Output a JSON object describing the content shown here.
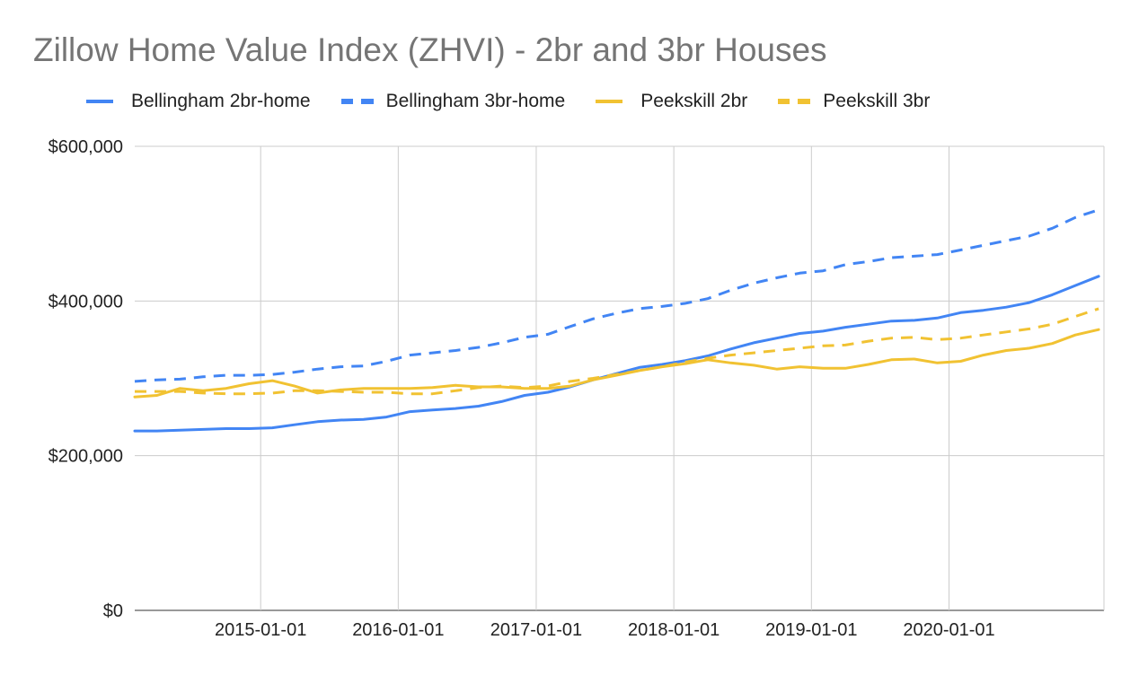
{
  "chart_data": {
    "type": "line",
    "title": "Zillow Home Value Index (ZHVI) - 2br and 3br Houses",
    "xlabel": "",
    "ylabel": "",
    "x_ticks": [
      "2015-01-01",
      "2016-01-01",
      "2017-01-01",
      "2018-01-01",
      "2019-01-01",
      "2020-01-01"
    ],
    "y_ticks": [
      "$0",
      "$200,000",
      "$400,000",
      "$600,000"
    ],
    "y_tick_values": [
      0,
      200000,
      400000,
      600000
    ],
    "xlim": [
      "2014-02-01",
      "2021-02-15"
    ],
    "ylim": [
      0,
      600000
    ],
    "grid": true,
    "legend_position": "top",
    "x": [
      "2014-02-01",
      "2014-04-01",
      "2014-06-01",
      "2014-08-01",
      "2014-10-01",
      "2014-12-01",
      "2015-02-01",
      "2015-04-01",
      "2015-06-01",
      "2015-08-01",
      "2015-10-01",
      "2015-12-01",
      "2016-02-01",
      "2016-04-01",
      "2016-06-01",
      "2016-08-01",
      "2016-10-01",
      "2016-12-01",
      "2017-02-01",
      "2017-04-01",
      "2017-06-01",
      "2017-08-01",
      "2017-10-01",
      "2017-12-01",
      "2018-02-01",
      "2018-04-01",
      "2018-06-01",
      "2018-08-01",
      "2018-10-01",
      "2018-12-01",
      "2019-02-01",
      "2019-04-01",
      "2019-06-01",
      "2019-08-01",
      "2019-10-01",
      "2019-12-01",
      "2020-02-01",
      "2020-04-01",
      "2020-06-01",
      "2020-08-01",
      "2020-10-01",
      "2020-12-01",
      "2021-02-01"
    ],
    "series": [
      {
        "name": "Bellingham 2br-home",
        "color": "#4285f4",
        "dash": "solid",
        "values": [
          232000,
          232000,
          233000,
          234000,
          235000,
          235000,
          236000,
          240000,
          244000,
          246000,
          247000,
          250000,
          257000,
          259000,
          261000,
          264000,
          270000,
          278000,
          282000,
          289000,
          298000,
          306000,
          314000,
          318000,
          323000,
          329000,
          338000,
          346000,
          352000,
          358000,
          361000,
          366000,
          370000,
          374000,
          375000,
          378000,
          385000,
          388000,
          392000,
          398000,
          408000,
          420000,
          432000
        ]
      },
      {
        "name": "Bellingham 3br-home",
        "color": "#4285f4",
        "dash": "dashed",
        "values": [
          296000,
          298000,
          299000,
          302000,
          304000,
          304000,
          305000,
          308000,
          312000,
          315000,
          316000,
          322000,
          330000,
          333000,
          336000,
          340000,
          346000,
          353000,
          357000,
          367000,
          377000,
          384000,
          390000,
          393000,
          397000,
          403000,
          414000,
          423000,
          430000,
          436000,
          439000,
          447000,
          451000,
          456000,
          458000,
          460000,
          466000,
          472000,
          478000,
          484000,
          494000,
          508000,
          518000
        ]
      },
      {
        "name": "Peekskill 2br",
        "color": "#f1c232",
        "dash": "solid",
        "values": [
          276000,
          278000,
          287000,
          284000,
          287000,
          293000,
          297000,
          290000,
          281000,
          285000,
          287000,
          287000,
          287000,
          288000,
          291000,
          289000,
          289000,
          287000,
          287000,
          290000,
          298000,
          304000,
          310000,
          315000,
          319000,
          324000,
          320000,
          317000,
          312000,
          315000,
          313000,
          313000,
          318000,
          324000,
          325000,
          320000,
          322000,
          330000,
          336000,
          339000,
          345000,
          356000,
          363000
        ]
      },
      {
        "name": "Peekskill 3br",
        "color": "#f1c232",
        "dash": "dashed",
        "values": [
          283000,
          283000,
          283000,
          281000,
          280000,
          280000,
          281000,
          284000,
          284000,
          283000,
          282000,
          282000,
          280000,
          280000,
          284000,
          288000,
          290000,
          288000,
          290000,
          296000,
          300000,
          305000,
          310000,
          315000,
          321000,
          326000,
          330000,
          333000,
          336000,
          339000,
          342000,
          343000,
          348000,
          352000,
          353000,
          350000,
          352000,
          356000,
          360000,
          364000,
          370000,
          380000,
          390000
        ]
      }
    ]
  }
}
